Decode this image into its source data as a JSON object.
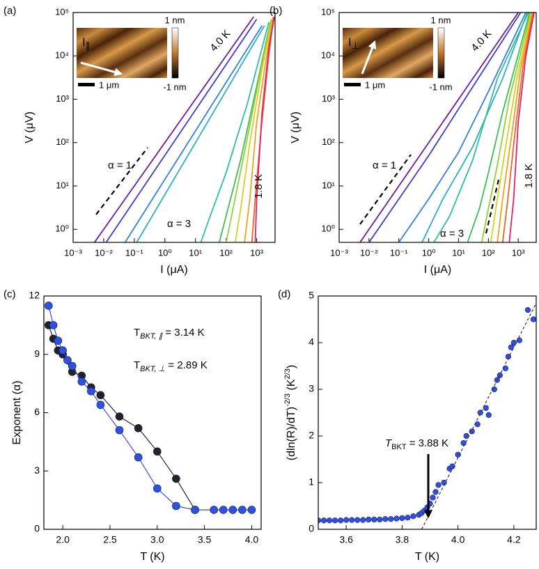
{
  "chart_data": [
    {
      "type": "line",
      "label": "(a)",
      "xlabel": "I (μA)",
      "ylabel": "V (μV)",
      "xscale": "log",
      "yscale": "log",
      "xlim": [
        0.001,
        4000
      ],
      "ylim": [
        0.5,
        100000
      ],
      "xticks": [
        {
          "value": 0.001,
          "label": "10⁻³"
        },
        {
          "value": 0.01,
          "label": "10⁻²"
        },
        {
          "value": 0.1,
          "label": "10⁻¹"
        },
        {
          "value": 1,
          "label": "10⁰"
        },
        {
          "value": 10,
          "label": "10¹"
        },
        {
          "value": 100,
          "label": "10²"
        },
        {
          "value": 1000,
          "label": "10³"
        }
      ],
      "yticks": [
        {
          "value": 1,
          "label": "10⁰"
        },
        {
          "value": 10,
          "label": "10¹"
        },
        {
          "value": 100,
          "label": "10²"
        },
        {
          "value": 1000,
          "label": "10³"
        },
        {
          "value": 10000,
          "label": "10⁴"
        },
        {
          "value": 100000,
          "label": "10⁵"
        }
      ],
      "annotations": [
        {
          "text": "4.0 K",
          "color": "#6a1b9a"
        },
        {
          "text": "1.8 K",
          "color": "#e0206a"
        },
        {
          "text": "α = 1",
          "color": "#000000"
        },
        {
          "text": "α = 3",
          "color": "#000000"
        }
      ],
      "inset": {
        "top": "1 nm",
        "bottom": "-1 nm",
        "scalebar": "1 μm",
        "current": "I",
        "current_sub": "∥"
      },
      "series": [
        {
          "color": "#6a1b9a",
          "x": [
            0.005,
            800
          ],
          "values": [
            0.5,
            80000
          ]
        },
        {
          "color": "#3a3ad0",
          "x": [
            0.012,
            1000
          ],
          "values": [
            0.5,
            70000
          ]
        },
        {
          "color": "#2f7fe0",
          "x": [
            0.05,
            1500
          ],
          "values": [
            0.5,
            50000
          ]
        },
        {
          "color": "#2aaec8",
          "x": [
            0.12,
            1800
          ],
          "values": [
            0.5,
            50000
          ]
        },
        {
          "color": "#2bbf9a",
          "x": [
            15,
            30,
            100,
            500,
            2500
          ],
          "values": [
            0.5,
            2,
            20,
            800,
            60000
          ]
        },
        {
          "color": "#37c050",
          "x": [
            60,
            100,
            300,
            1000,
            2800
          ],
          "values": [
            0.5,
            2,
            40,
            2000,
            60000
          ]
        },
        {
          "color": "#8fd030",
          "x": [
            100,
            150,
            400,
            1200,
            3000
          ],
          "values": [
            0.5,
            2,
            60,
            3000,
            70000
          ]
        },
        {
          "color": "#d8d020",
          "x": [
            200,
            300,
            600,
            1500,
            3200
          ],
          "values": [
            0.5,
            3,
            100,
            5000,
            70000
          ]
        },
        {
          "color": "#f0a020",
          "x": [
            400,
            600,
            1000,
            2000,
            3400
          ],
          "values": [
            0.5,
            5,
            300,
            8000,
            75000
          ]
        },
        {
          "color": "#f06020",
          "x": [
            700,
            900,
            1400,
            2500,
            3600
          ],
          "values": [
            0.5,
            5,
            200,
            10000,
            80000
          ]
        },
        {
          "color": "#e0206a",
          "x": [
            900,
            1000,
            1500,
            2500,
            3800
          ],
          "values": [
            0.5,
            5,
            500,
            15000,
            80000
          ]
        }
      ]
    },
    {
      "type": "line",
      "label": "(b)",
      "xlabel": "I (μA)",
      "ylabel": "V (μV)",
      "xscale": "log",
      "yscale": "log",
      "xlim": [
        0.001,
        4000
      ],
      "ylim": [
        0.5,
        100000
      ],
      "xticks": [
        {
          "value": 0.001,
          "label": "10⁻³"
        },
        {
          "value": 0.01,
          "label": "10⁻²"
        },
        {
          "value": 0.1,
          "label": "10⁻¹"
        },
        {
          "value": 1,
          "label": "10⁰"
        },
        {
          "value": 10,
          "label": "10¹"
        },
        {
          "value": 100,
          "label": "10²"
        },
        {
          "value": 1000,
          "label": "10³"
        }
      ],
      "yticks": [
        {
          "value": 1,
          "label": "10⁰"
        },
        {
          "value": 10,
          "label": "10¹"
        },
        {
          "value": 100,
          "label": "10²"
        },
        {
          "value": 1000,
          "label": "10³"
        },
        {
          "value": 10000,
          "label": "10⁴"
        },
        {
          "value": 100000,
          "label": "10⁵"
        }
      ],
      "annotations": [
        {
          "text": "4.0 K",
          "color": "#6a1b9a"
        },
        {
          "text": "1.8 K",
          "color": "#e0206a"
        },
        {
          "text": "α = 1",
          "color": "#000000"
        },
        {
          "text": "α = 3",
          "color": "#000000"
        }
      ],
      "inset": {
        "top": "1 nm",
        "bottom": "-1 nm",
        "scalebar": "1 μm",
        "current": "I",
        "current_sub": "⊥"
      },
      "series": [
        {
          "color": "#6a1b9a",
          "x": [
            0.005,
            1000
          ],
          "values": [
            0.5,
            100000
          ]
        },
        {
          "color": "#3a3ad0",
          "x": [
            0.01,
            0.1,
            1,
            10,
            1200
          ],
          "values": [
            0.5,
            5,
            50,
            600,
            100000
          ]
        },
        {
          "color": "#2f7fe0",
          "x": [
            0.1,
            1,
            10,
            100,
            1800
          ],
          "values": [
            0.5,
            5,
            60,
            1500,
            100000
          ]
        },
        {
          "color": "#2aaec8",
          "x": [
            0.6,
            3,
            30,
            300,
            2000
          ],
          "values": [
            0.5,
            5,
            80,
            3000,
            100000
          ]
        },
        {
          "color": "#2bbf9a",
          "x": [
            1.5,
            5,
            30,
            200,
            2200
          ],
          "values": [
            0.5,
            2,
            40,
            3000,
            100000
          ]
        },
        {
          "color": "#37c050",
          "x": [
            20,
            50,
            100,
            300,
            2400
          ],
          "values": [
            0.5,
            3,
            20,
            500,
            100000
          ]
        },
        {
          "color": "#8fd030",
          "x": [
            60,
            100,
            200,
            500,
            2600
          ],
          "values": [
            0.5,
            3,
            30,
            1000,
            100000
          ]
        },
        {
          "color": "#d8d020",
          "x": [
            120,
            200,
            400,
            900,
            2800
          ],
          "values": [
            0.5,
            5,
            100,
            3000,
            100000
          ]
        },
        {
          "color": "#f0a020",
          "x": [
            200,
            300,
            600,
            1200,
            3000
          ],
          "values": [
            0.5,
            5,
            150,
            5000,
            100000
          ]
        },
        {
          "color": "#f06020",
          "x": [
            300,
            450,
            800,
            1500,
            3200
          ],
          "values": [
            0.5,
            5,
            200,
            7000,
            100000
          ]
        },
        {
          "color": "#e0206a",
          "x": [
            500,
            700,
            1000,
            1800,
            3400
          ],
          "values": [
            0.5,
            5,
            300,
            10000,
            100000
          ]
        }
      ]
    },
    {
      "type": "line",
      "label": "(c)",
      "xlabel": "T (K)",
      "ylabel": "Exponent (α)",
      "xlim": [
        1.8,
        4.1
      ],
      "ylim": [
        0,
        12
      ],
      "xticks": [
        {
          "value": 2,
          "label": "2.0"
        },
        2.5,
        {
          "value": 3,
          "label": "3.0"
        },
        3.5,
        {
          "value": 4,
          "label": "4.0"
        }
      ],
      "yticks": [
        0,
        3,
        6,
        9,
        12
      ],
      "annotations": [
        {
          "text": "T",
          "sub": "BKT, ∥",
          "rest": " = 3.14 K",
          "color": "#000000"
        },
        {
          "text": "T",
          "sub": "BKT, ⊥",
          "rest": " = 2.89 K",
          "color": "#2040e0"
        }
      ],
      "series": [
        {
          "color": "#222222",
          "markers": true,
          "x": [
            1.85,
            1.9,
            1.95,
            2.0,
            2.1,
            2.2,
            2.3,
            2.4,
            2.6,
            2.8,
            3.0,
            3.2,
            3.4
          ],
          "values": [
            10.5,
            9.8,
            9.2,
            9.0,
            8.1,
            7.9,
            7.3,
            6.9,
            5.8,
            5.2,
            4.0,
            2.6,
            1.0
          ]
        },
        {
          "color": "#3050e0",
          "markers": true,
          "x": [
            1.85,
            1.9,
            1.95,
            2.0,
            2.05,
            2.1,
            2.2,
            2.3,
            2.4,
            2.6,
            2.8,
            3.0,
            3.2,
            3.4,
            3.6,
            3.7,
            3.8,
            3.9,
            4.0
          ],
          "values": [
            11.5,
            10.5,
            9.7,
            9.2,
            8.7,
            8.4,
            7.6,
            7.1,
            6.4,
            5.1,
            3.7,
            2.1,
            1.2,
            1.0,
            1.0,
            1.0,
            1.0,
            1.0,
            1.0
          ]
        }
      ]
    },
    {
      "type": "scatter",
      "label": "(d)",
      "xlabel": "T (K)",
      "ylabel": [
        "(dln(R)/dT)",
        "-2/3",
        " (K",
        "2/3",
        ")"
      ],
      "xlim": [
        3.5,
        4.28
      ],
      "ylim": [
        0,
        5
      ],
      "xticks": [
        3.6,
        3.8,
        {
          "value": 4,
          "label": "4.0"
        },
        4.2
      ],
      "yticks": [
        0,
        1,
        2,
        3,
        4,
        5
      ],
      "annotations": [
        {
          "text": "T",
          "sub": "BKT",
          "rest": " = 3.88 K",
          "color": "#000000"
        }
      ],
      "series": [
        {
          "color": "#3050e0",
          "markers": true,
          "x": [
            3.5,
            3.52,
            3.54,
            3.56,
            3.58,
            3.6,
            3.62,
            3.64,
            3.66,
            3.68,
            3.7,
            3.72,
            3.74,
            3.76,
            3.78,
            3.8,
            3.82,
            3.84,
            3.86,
            3.87,
            3.88,
            3.89,
            3.9,
            3.91,
            3.92,
            3.93,
            3.95,
            3.97,
            3.98,
            4.0,
            4.02,
            4.03,
            4.05,
            4.07,
            4.08,
            4.1,
            4.11,
            4.13,
            4.14,
            4.15,
            4.17,
            4.18,
            4.19,
            4.2,
            4.22,
            4.25,
            4.27
          ],
          "values": [
            0.19,
            0.19,
            0.19,
            0.19,
            0.19,
            0.2,
            0.2,
            0.2,
            0.2,
            0.21,
            0.21,
            0.21,
            0.22,
            0.22,
            0.23,
            0.24,
            0.25,
            0.28,
            0.31,
            0.35,
            0.4,
            0.47,
            0.55,
            0.68,
            0.8,
            0.95,
            1.0,
            1.3,
            1.35,
            1.6,
            1.85,
            2.0,
            2.1,
            2.25,
            2.5,
            2.6,
            2.45,
            3.0,
            3.2,
            3.3,
            3.45,
            3.7,
            3.9,
            4.0,
            4.05,
            4.7,
            4.5
          ]
        },
        {
          "color": "#333333",
          "dashed": true,
          "x": [
            3.87,
            4.28
          ],
          "values": [
            0,
            4.85
          ]
        }
      ]
    }
  ]
}
